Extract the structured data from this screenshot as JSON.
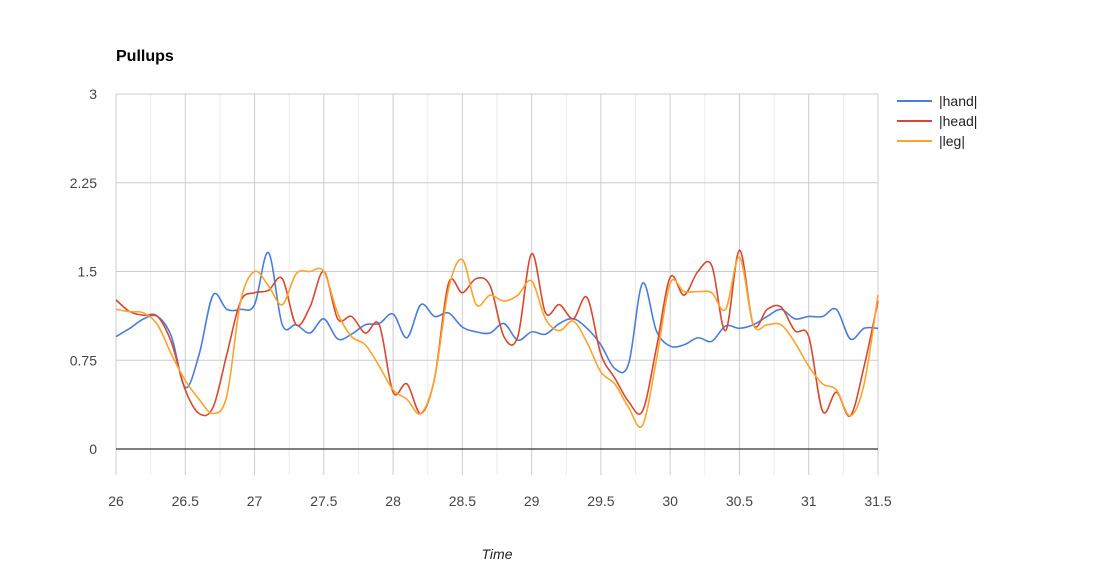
{
  "chart_data": {
    "type": "line",
    "title": "Pullups",
    "xlabel": "Time",
    "ylabel": "",
    "xlim": [
      26,
      31.5
    ],
    "ylim": [
      0,
      3
    ],
    "x_ticks": [
      "26",
      "26.5",
      "27",
      "27.5",
      "28",
      "28.5",
      "29",
      "29.5",
      "30",
      "30.5",
      "31",
      "31.5"
    ],
    "y_ticks": [
      "0",
      "0.75",
      "1.5",
      "2.25",
      "3"
    ],
    "grid": true,
    "legend_position": "right",
    "x": [
      26.0,
      26.1,
      26.2,
      26.3,
      26.4,
      26.5,
      26.6,
      26.7,
      26.8,
      26.9,
      27.0,
      27.1,
      27.2,
      27.3,
      27.4,
      27.5,
      27.6,
      27.7,
      27.8,
      27.9,
      28.0,
      28.1,
      28.2,
      28.3,
      28.4,
      28.5,
      28.6,
      28.7,
      28.8,
      28.9,
      29.0,
      29.1,
      29.2,
      29.3,
      29.4,
      29.5,
      29.6,
      29.7,
      29.8,
      29.9,
      30.0,
      30.1,
      30.2,
      30.3,
      30.4,
      30.5,
      30.6,
      30.7,
      30.8,
      30.9,
      31.0,
      31.1,
      31.2,
      31.3,
      31.4,
      31.5
    ],
    "series": [
      {
        "name": "|hand|",
        "color": "#4a7ddb",
        "values": [
          0.95,
          1.02,
          1.1,
          1.12,
          0.95,
          0.52,
          0.8,
          1.3,
          1.18,
          1.18,
          1.22,
          1.66,
          1.05,
          1.05,
          0.98,
          1.1,
          0.93,
          0.97,
          1.05,
          1.06,
          1.14,
          0.94,
          1.22,
          1.12,
          1.15,
          1.03,
          0.99,
          0.98,
          1.06,
          0.92,
          0.99,
          0.97,
          1.06,
          1.1,
          1.02,
          0.88,
          0.68,
          0.72,
          1.4,
          1.0,
          0.87,
          0.88,
          0.94,
          0.91,
          1.04,
          1.02,
          1.05,
          1.12,
          1.18,
          1.1,
          1.12,
          1.12,
          1.18,
          0.93,
          1.02,
          1.02
        ]
      },
      {
        "name": "|head|",
        "color": "#d9482e",
        "values": [
          1.26,
          1.16,
          1.13,
          1.12,
          0.9,
          0.5,
          0.3,
          0.35,
          0.8,
          1.25,
          1.32,
          1.34,
          1.44,
          1.05,
          1.2,
          1.5,
          1.1,
          1.12,
          0.98,
          1.05,
          0.48,
          0.55,
          0.3,
          0.6,
          1.4,
          1.32,
          1.44,
          1.38,
          0.95,
          0.95,
          1.65,
          1.15,
          1.22,
          1.1,
          1.28,
          0.8,
          0.6,
          0.4,
          0.32,
          0.85,
          1.45,
          1.3,
          1.5,
          1.55,
          1.0,
          1.68,
          1.05,
          1.18,
          1.2,
          1.0,
          0.95,
          0.32,
          0.48,
          0.28,
          0.7,
          1.25
        ]
      },
      {
        "name": "|leg|",
        "color": "#fca32c",
        "values": [
          1.18,
          1.16,
          1.15,
          1.05,
          0.8,
          0.58,
          0.42,
          0.3,
          0.45,
          1.25,
          1.5,
          1.38,
          1.22,
          1.48,
          1.5,
          1.5,
          1.15,
          0.95,
          0.88,
          0.7,
          0.5,
          0.42,
          0.3,
          0.6,
          1.35,
          1.6,
          1.22,
          1.3,
          1.25,
          1.3,
          1.42,
          1.1,
          1.0,
          1.08,
          0.9,
          0.65,
          0.55,
          0.35,
          0.2,
          0.75,
          1.4,
          1.33,
          1.33,
          1.32,
          1.18,
          1.62,
          1.05,
          1.05,
          1.05,
          0.9,
          0.7,
          0.55,
          0.5,
          0.28,
          0.55,
          1.3
        ]
      }
    ]
  },
  "colors": {
    "grid_major": "#cccccc",
    "grid_minor": "#ebebeb",
    "baseline": "#333333"
  }
}
